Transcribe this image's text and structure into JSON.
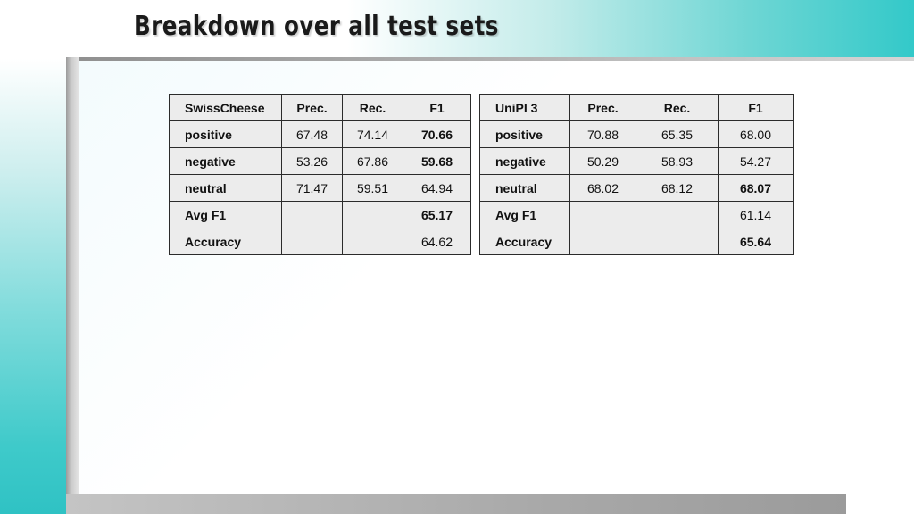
{
  "title": "Breakdown over all test sets",
  "tables": [
    {
      "system": "SwissCheese",
      "columns": [
        "Prec.",
        "Rec.",
        "F1"
      ],
      "rows": [
        {
          "label": "positive",
          "prec": "67.48",
          "rec": "74.14",
          "f1": "70.66"
        },
        {
          "label": "negative",
          "prec": "53.26",
          "rec": "67.86",
          "f1": "59.68"
        },
        {
          "label": "neutral",
          "prec": "71.47",
          "rec": "59.51",
          "f1": "64.94"
        },
        {
          "label": "Avg F1",
          "prec": "",
          "rec": "",
          "f1": "65.17"
        },
        {
          "label": "Accuracy",
          "prec": "",
          "rec": "",
          "f1": "64.62"
        }
      ]
    },
    {
      "system": "UniPI 3",
      "columns": [
        "Prec.",
        "Rec.",
        "F1"
      ],
      "rows": [
        {
          "label": "positive",
          "prec": "70.88",
          "rec": "65.35",
          "f1": "68.00"
        },
        {
          "label": "negative",
          "prec": "50.29",
          "rec": "58.93",
          "f1": "54.27"
        },
        {
          "label": "neutral",
          "prec": "68.02",
          "rec": "68.12",
          "f1": "68.07"
        },
        {
          "label": "Avg F1",
          "prec": "",
          "rec": "",
          "f1": "61.14"
        },
        {
          "label": "Accuracy",
          "prec": "",
          "rec": "",
          "f1": "65.64"
        }
      ]
    }
  ]
}
